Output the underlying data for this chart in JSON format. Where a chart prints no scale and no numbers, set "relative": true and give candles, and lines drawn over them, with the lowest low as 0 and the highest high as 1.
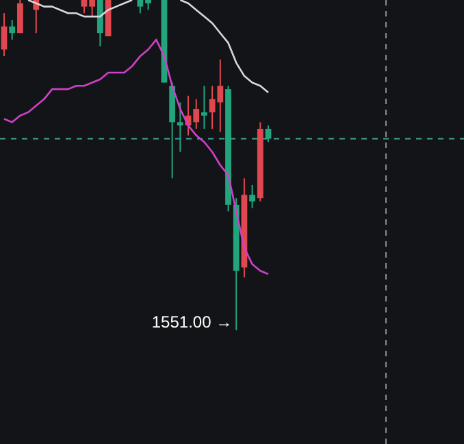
{
  "chart_data": {
    "type": "candlestick",
    "relative": true,
    "categories": [
      null,
      null,
      null,
      null,
      null,
      null,
      null,
      null,
      null,
      null,
      null,
      null,
      null,
      null,
      null,
      null,
      null,
      null,
      null,
      null,
      null,
      null,
      null,
      null,
      null,
      null,
      null,
      null,
      null,
      null,
      null,
      null,
      null,
      null
    ],
    "ohlc": [
      [
        0.85,
        0.96,
        0.83,
        0.92
      ],
      [
        0.92,
        0.94,
        0.88,
        0.9
      ],
      [
        0.9,
        1.0,
        0.9,
        0.99
      ],
      null,
      [
        0.97,
        1.0,
        0.9,
        1.0
      ],
      null,
      null,
      null,
      null,
      null,
      [
        0.98,
        1.0,
        0.96,
        1.0
      ],
      [
        0.98,
        1.0,
        0.95,
        1.0
      ],
      [
        1.0,
        1.0,
        0.86,
        0.9
      ],
      [
        0.89,
        1.0,
        0.89,
        1.0
      ],
      null,
      null,
      null,
      [
        1.0,
        1.0,
        0.96,
        0.98
      ],
      [
        1.0,
        1.0,
        0.97,
        0.99
      ],
      null,
      [
        1.0,
        1.0,
        0.75,
        0.75
      ],
      [
        0.74,
        0.75,
        0.46,
        0.63
      ],
      [
        0.63,
        0.69,
        0.54,
        0.62
      ],
      [
        0.62,
        0.71,
        0.59,
        0.65
      ],
      [
        0.63,
        0.7,
        0.61,
        0.67
      ],
      [
        0.66,
        0.74,
        0.61,
        0.65
      ],
      [
        0.66,
        0.74,
        0.61,
        0.7
      ],
      [
        0.69,
        0.82,
        0.6,
        0.74
      ],
      [
        0.73,
        0.74,
        0.36,
        0.38
      ],
      [
        0.38,
        0.4,
        0,
        0.18
      ],
      [
        0.19,
        0.46,
        0.16,
        0.41
      ],
      [
        0.41,
        0.44,
        0.37,
        0.39
      ],
      [
        0.4,
        0.63,
        0.39,
        0.61
      ],
      [
        0.61,
        0.62,
        0.57,
        0.58
      ]
    ],
    "colors": [
      "#e04850",
      "#22a57d",
      "#e04850",
      null,
      "#e04850",
      null,
      null,
      null,
      null,
      null,
      "#e04850",
      "#e04850",
      "#22a57d",
      "#e04850",
      null,
      null,
      null,
      "#22a57d",
      "#22a57d",
      null,
      "#22a57d",
      "#22a57d",
      "#22a57d",
      "#e04850",
      "#e04850",
      "#22a57d",
      "#e04850",
      "#e04850",
      "#22a57d",
      "#22a57d",
      "#e04850",
      "#22a57d",
      "#e04850",
      "#22a57d"
    ],
    "series": [
      {
        "type": "line",
        "color": "#d8d8d8",
        "values": [
          null,
          null,
          null,
          1.0,
          0.99,
          0.98,
          0.98,
          0.97,
          0.96,
          0.96,
          0.95,
          0.95,
          0.95,
          0.97,
          0.98,
          0.99,
          1.0,
          null,
          null,
          null,
          null,
          null,
          1.0,
          0.99,
          0.97,
          0.95,
          0.93,
          0.9,
          0.87,
          0.81,
          0.77,
          0.75,
          0.74,
          0.72
        ]
      },
      {
        "type": "line",
        "color": "#d040c8",
        "values": [
          0.64,
          0.63,
          0.65,
          0.66,
          0.68,
          0.7,
          0.73,
          0.73,
          0.73,
          0.74,
          0.74,
          0.75,
          0.76,
          0.78,
          0.78,
          0.78,
          0.8,
          0.83,
          0.85,
          0.88,
          0.83,
          0.74,
          0.67,
          0.62,
          0.59,
          0.57,
          0.54,
          0.5,
          0.47,
          0.36,
          0.25,
          0.2,
          0.18,
          0.17
        ]
      }
    ],
    "ref_lines": [
      {
        "axis": "y",
        "value": 0.58,
        "color": "#3fa99a",
        "line_style": "dashed"
      }
    ],
    "annotations": [
      "1551.00 →"
    ]
  }
}
